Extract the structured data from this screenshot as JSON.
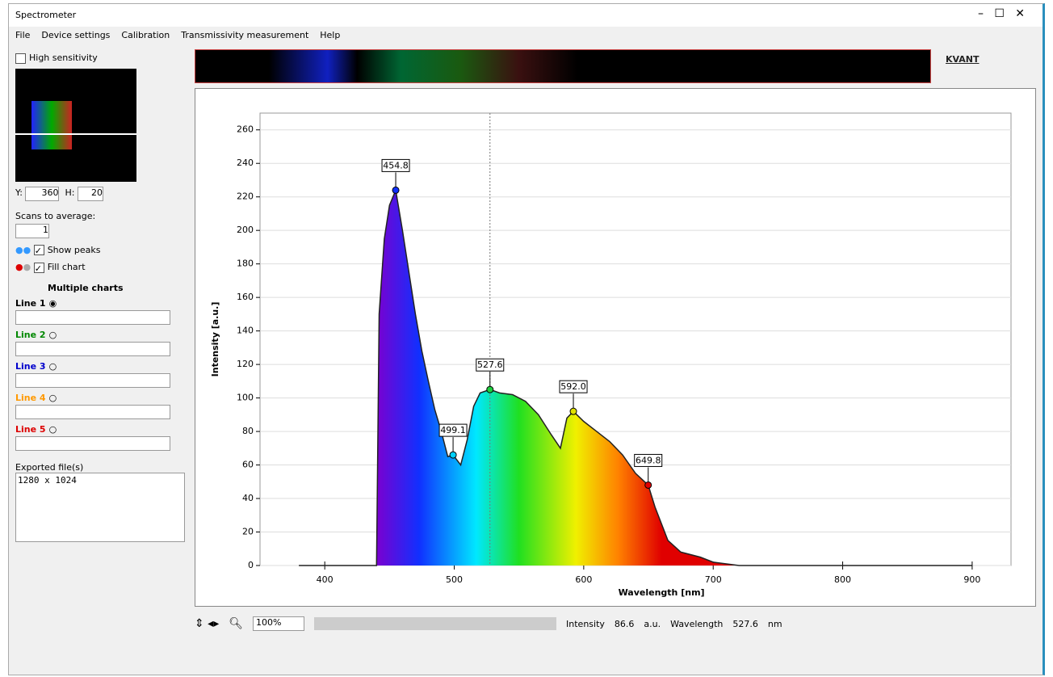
{
  "window": {
    "title": "Spectrometer",
    "logo": "KVANT",
    "menu": [
      "File",
      "Device settings",
      "Calibration",
      "Transmissivity measurement",
      "Help"
    ]
  },
  "left_panel": {
    "high_sensitivity": "High sensitivity",
    "y_label": "Y:",
    "y_value": 360,
    "h_label": "H:",
    "h_value": 20,
    "scans_label": "Scans to average:",
    "scans_value": 1,
    "show_peaks": "Show peaks",
    "fill_chart": "Fill chart",
    "multiple_charts": "Multiple charts",
    "lines": [
      "Line 1",
      "Line 2",
      "Line 3",
      "Line 4",
      "Line 5"
    ],
    "exported_label": "Exported file(s)",
    "exported_text": "1280 x 1024"
  },
  "toolbar": {
    "zoom": "100%"
  },
  "status": {
    "intensity_label": "Intensity",
    "intensity_value": 86.6,
    "intensity_unit": "a.u.",
    "wavelength_label": "Wavelength",
    "wavelength_value": 527.6,
    "wavelength_unit": "nm"
  },
  "chart_data": {
    "type": "area",
    "x_label": "Wavelength [nm]",
    "y_label": "Intensity [a.u.]",
    "x": [
      380,
      440,
      442,
      446,
      450,
      454.8,
      460,
      465,
      470,
      475,
      480,
      485,
      490,
      495,
      499.1,
      505,
      510,
      515,
      520,
      527.6,
      535,
      545,
      555,
      565,
      575,
      582,
      587,
      592,
      600,
      610,
      620,
      630,
      640,
      649.8,
      655,
      665,
      675,
      690,
      700,
      720,
      900
    ],
    "values": [
      0,
      0,
      150,
      195,
      215,
      224,
      200,
      175,
      150,
      128,
      110,
      93,
      80,
      65,
      66,
      60,
      75,
      95,
      103,
      105,
      103,
      102,
      98,
      90,
      78,
      70,
      88,
      92,
      86,
      80,
      74,
      66,
      55,
      48,
      35,
      15,
      8,
      5,
      2,
      0,
      0
    ],
    "peaks": [
      {
        "wavelength": 454.8,
        "intensity": 224
      },
      {
        "wavelength": 499.1,
        "intensity": 66
      },
      {
        "wavelength": 527.6,
        "intensity": 105
      },
      {
        "wavelength": 592.0,
        "intensity": 92,
        "label": "592.0"
      },
      {
        "wavelength": 649.8,
        "intensity": 48
      }
    ],
    "xlim": [
      350,
      930
    ],
    "ylim": [
      0,
      270
    ],
    "xticks": [
      400,
      500,
      600,
      700,
      800,
      900
    ],
    "yticks": [
      0,
      20,
      40,
      60,
      80,
      100,
      120,
      140,
      160,
      180,
      200,
      220,
      240,
      260
    ],
    "grid": true
  }
}
